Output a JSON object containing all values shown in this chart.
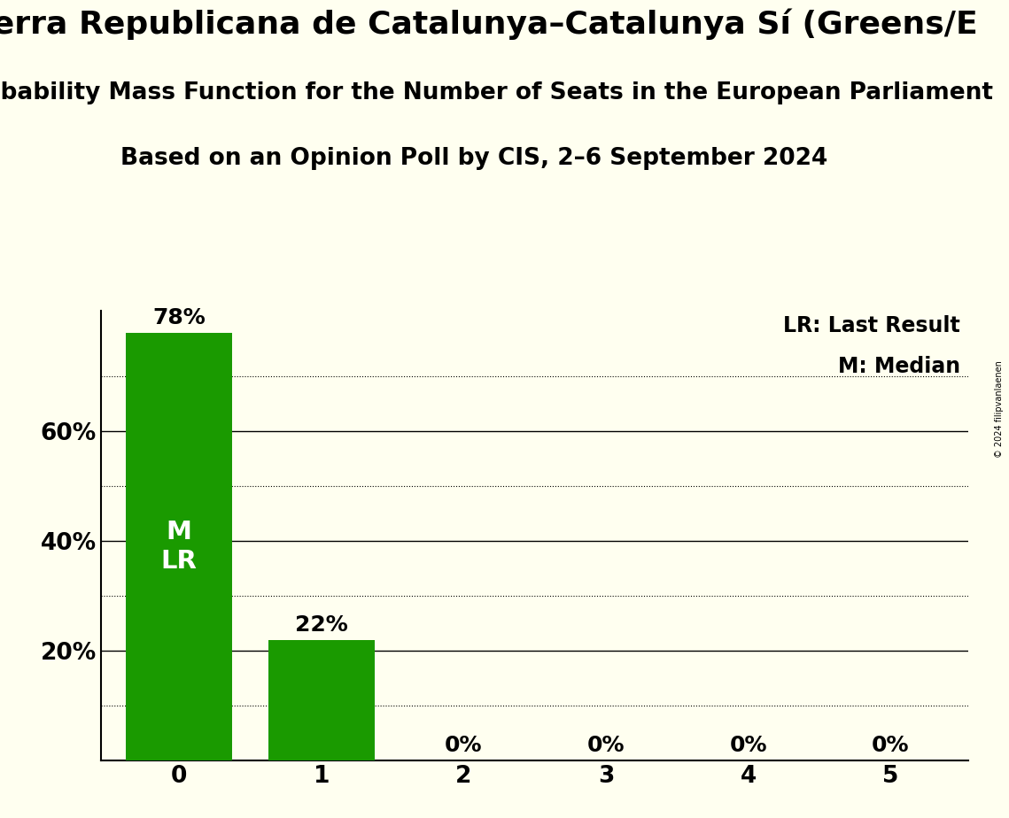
{
  "title_line1": "uerra Republicana de Catalunya–Catalunya Sí (Greens/E",
  "title_line2": "Probability Mass Function for the Number of Seats in the European Parliament",
  "title_line3": "Based on an Opinion Poll by CIS, 2–6 September 2024",
  "categories": [
    0,
    1,
    2,
    3,
    4,
    5
  ],
  "values": [
    78,
    22,
    0,
    0,
    0,
    0
  ],
  "bar_color": "#1a9a00",
  "background_color": "#fffff0",
  "ylabel_ticks": [
    0,
    20,
    40,
    60
  ],
  "ylabel_labels": [
    "",
    "20%",
    "40%",
    "60%"
  ],
  "ylim": [
    0,
    82
  ],
  "legend_lr": "LR: Last Result",
  "legend_m": "M: Median",
  "bar_labels": [
    "78%",
    "22%",
    "0%",
    "0%",
    "0%",
    "0%"
  ],
  "bar_annotation": "M\nLR",
  "bar_annotation_idx": 0,
  "copyright": "© 2024 filipvanlaenen",
  "solid_grid_vals": [
    20,
    40,
    60
  ],
  "dotted_grid_vals": [
    10,
    30,
    50,
    70
  ],
  "title_fontsize": 26,
  "subtitle1_fontsize": 19,
  "subtitle2_fontsize": 19,
  "tick_fontsize": 19,
  "label_fontsize": 18,
  "legend_fontsize": 17,
  "annotation_fontsize": 21
}
